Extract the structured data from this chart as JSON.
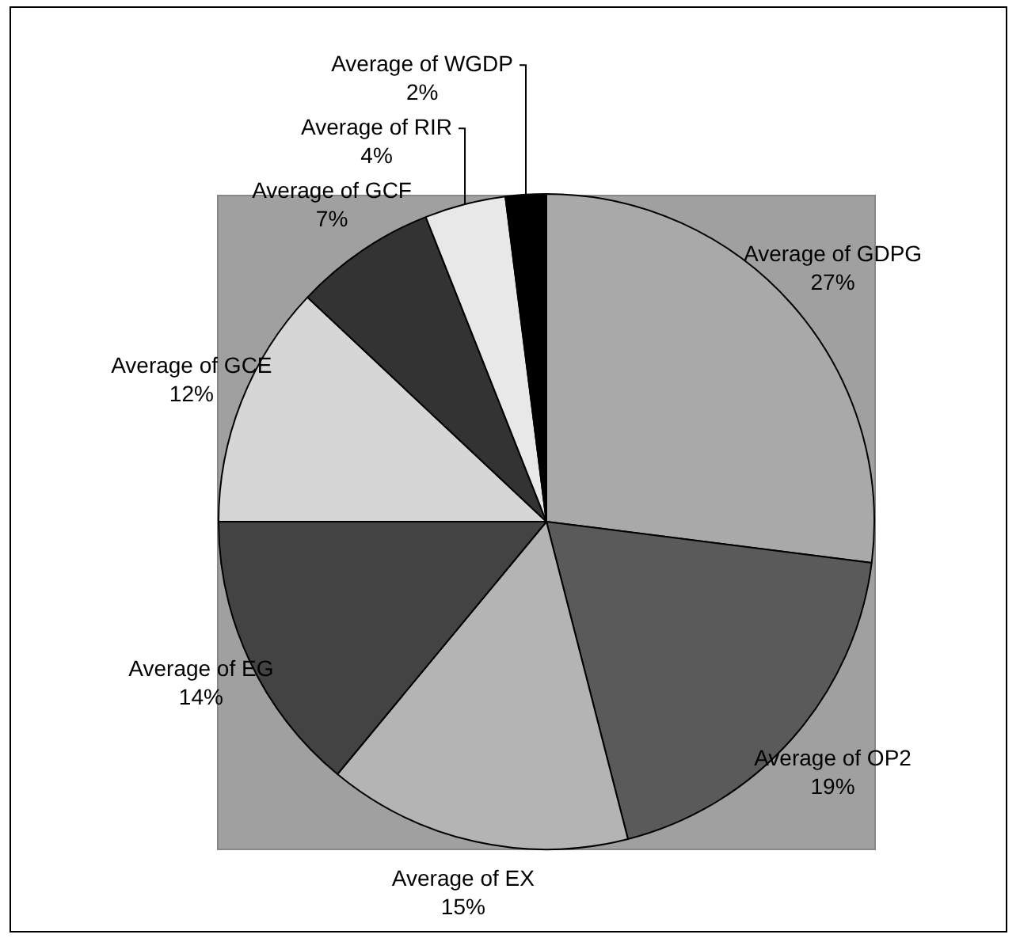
{
  "chart_data": {
    "type": "pie",
    "categories": [
      "Average of GDPG",
      "Average of OP2",
      "Average of EX",
      "Average of EG",
      "Average of GCE",
      "Average of GCF",
      "Average of RIR",
      "Average of WGDP"
    ],
    "values": [
      27,
      19,
      15,
      14,
      12,
      7,
      4,
      2
    ],
    "colors": [
      "#a9a9a9",
      "#5a5a5a",
      "#b4b4b4",
      "#434343",
      "#d6d6d6",
      "#333333",
      "#e8e8e8",
      "#000000"
    ],
    "value_labels": [
      "27%",
      "19%",
      "15%",
      "14%",
      "12%",
      "7%",
      "4%",
      "2%"
    ],
    "legend": false
  }
}
